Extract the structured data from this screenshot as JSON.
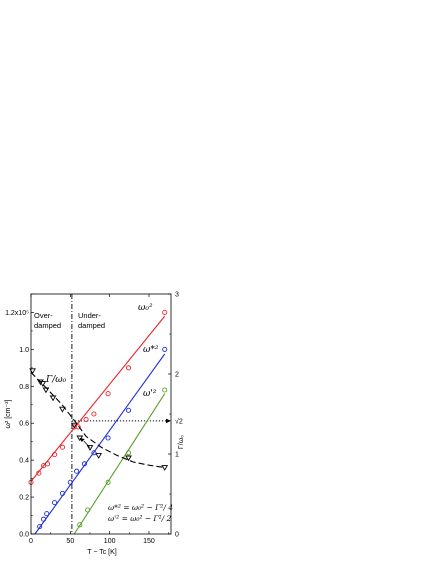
{
  "chart_data": {
    "type": "scatter",
    "xlabel": "T − Tc [K]",
    "ylabel_left": "ω² [cm⁻²]",
    "ylabel_right": "Γ/ω₀",
    "xlim": [
      0,
      178
    ],
    "ylim_left": [
      0,
      1.3
    ],
    "ylim_right": [
      0,
      3
    ],
    "x_ticks": [
      "0",
      "50",
      "100",
      "150"
    ],
    "y_ticks_left": [
      "0.0",
      "0.2",
      "0.4",
      "0.6",
      "0.8",
      "1.0",
      "1.2x10⁵"
    ],
    "y_ticks_right": [
      "0",
      "1",
      "2",
      "3"
    ],
    "right_extra_tick": "√2",
    "sqrt2_value": 1.414,
    "vline_x": 52,
    "region_labels": {
      "left": [
        "Over-",
        "damped"
      ],
      "right": [
        "Under-",
        "damped"
      ]
    },
    "formulas": [
      "ω*² = ω₀² − Γ²/ 4",
      "ω'² = ω₀² − Γ²/ 2"
    ],
    "series": [
      {
        "name": "ω₀²",
        "axis": "left",
        "color": "#e8262a",
        "marker": "circle",
        "fit": [
          [
            0,
            0.285
          ],
          [
            170,
            1.18
          ]
        ],
        "points": [
          [
            0,
            0.28
          ],
          [
            10,
            0.33
          ],
          [
            16,
            0.37
          ],
          [
            21,
            0.38
          ],
          [
            30,
            0.43
          ],
          [
            40,
            0.47
          ],
          [
            55,
            0.58
          ],
          [
            60,
            0.58
          ],
          [
            70,
            0.62
          ],
          [
            80,
            0.65
          ],
          [
            98,
            0.76
          ],
          [
            124,
            0.9
          ],
          [
            170,
            1.2
          ]
        ]
      },
      {
        "name": "ω*²",
        "axis": "left",
        "color": "#1f2fd8",
        "marker": "circle",
        "fit": [
          [
            5,
            0.0
          ],
          [
            170,
            0.975
          ]
        ],
        "points": [
          [
            11,
            0.04
          ],
          [
            16,
            0.08
          ],
          [
            20,
            0.11
          ],
          [
            30,
            0.17
          ],
          [
            40,
            0.22
          ],
          [
            50,
            0.28
          ],
          [
            58,
            0.34
          ],
          [
            68,
            0.38
          ],
          [
            80,
            0.44
          ],
          [
            98,
            0.52
          ],
          [
            124,
            0.67
          ],
          [
            170,
            1.0
          ]
        ]
      },
      {
        "name": "ω'²",
        "axis": "left",
        "color": "#5aa02c",
        "marker": "circle",
        "fit": [
          [
            55,
            0.0
          ],
          [
            170,
            0.76
          ]
        ],
        "points": [
          [
            62,
            0.05
          ],
          [
            72,
            0.13
          ],
          [
            98,
            0.28
          ],
          [
            124,
            0.44
          ],
          [
            170,
            0.78
          ]
        ]
      },
      {
        "name": "Γ/ω₀",
        "axis": "right",
        "color": "#000000",
        "marker": "triangle-down",
        "points": [
          [
            2,
            2.04
          ],
          [
            12,
            1.9
          ],
          [
            15,
            1.88
          ],
          [
            19,
            1.8
          ],
          [
            28,
            1.7
          ],
          [
            40,
            1.56
          ],
          [
            55,
            1.36
          ],
          [
            62,
            1.2
          ],
          [
            75,
            1.08
          ],
          [
            86,
            0.98
          ],
          [
            124,
            0.95
          ],
          [
            170,
            0.83
          ]
        ],
        "fit_dashed": [
          [
            0,
            2.02
          ],
          [
            20,
            1.82
          ],
          [
            40,
            1.61
          ],
          [
            55,
            1.42
          ],
          [
            70,
            1.22
          ],
          [
            90,
            1.08
          ],
          [
            110,
            0.98
          ],
          [
            130,
            0.9
          ],
          [
            150,
            0.86
          ],
          [
            170,
            0.83
          ]
        ]
      }
    ]
  }
}
